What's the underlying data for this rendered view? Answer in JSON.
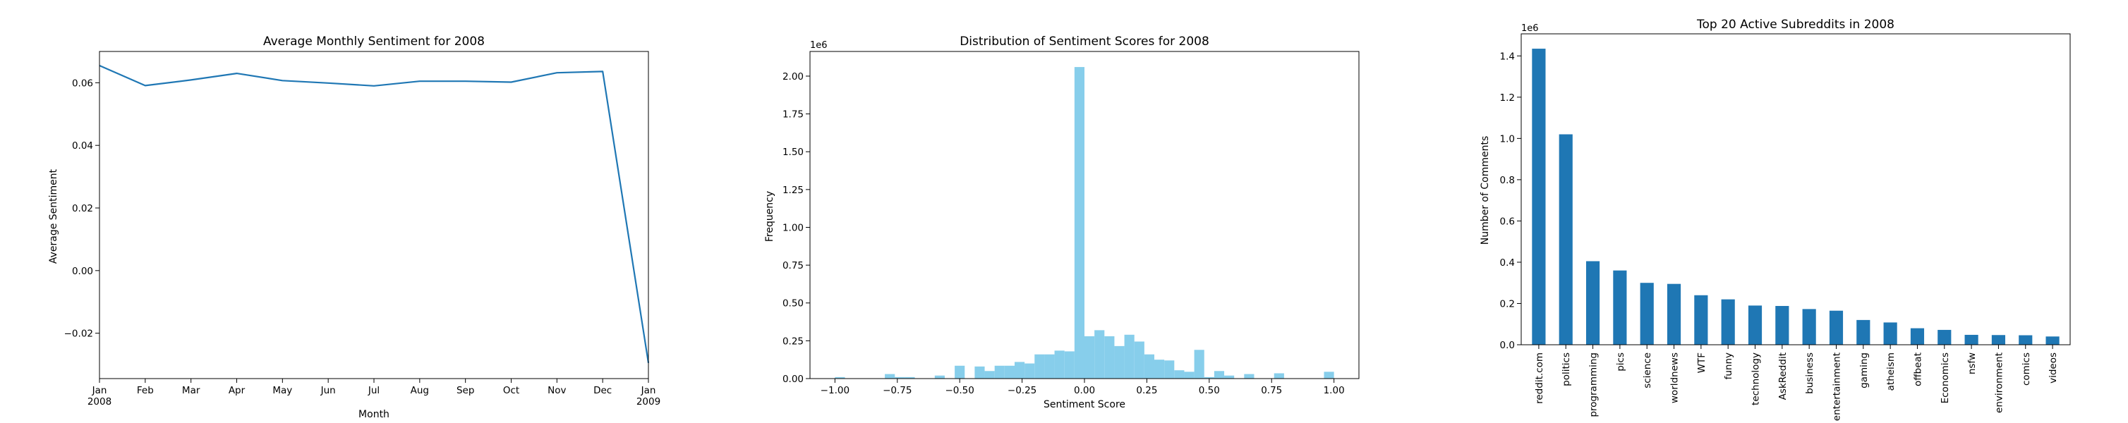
{
  "chart_data": [
    {
      "type": "line",
      "title": "Average Monthly Sentiment for 2008",
      "xlabel": "Month",
      "ylabel": "Average Sentiment",
      "x": [
        "2008-01",
        "2008-02",
        "2008-03",
        "2008-04",
        "2008-05",
        "2008-06",
        "2008-07",
        "2008-08",
        "2008-09",
        "2008-10",
        "2008-11",
        "2008-12",
        "2009-01"
      ],
      "x_tick_labels": [
        [
          "Jan",
          "2008"
        ],
        [
          "Feb"
        ],
        [
          "Mar"
        ],
        [
          "Apr"
        ],
        [
          "May"
        ],
        [
          "Jun"
        ],
        [
          "Jul"
        ],
        [
          "Aug"
        ],
        [
          "Sep"
        ],
        [
          "Oct"
        ],
        [
          "Nov"
        ],
        [
          "Dec"
        ],
        [
          "Jan",
          "2009"
        ]
      ],
      "values": [
        0.0655,
        0.0591,
        0.0609,
        0.063,
        0.0607,
        0.0599,
        0.059,
        0.0605,
        0.0605,
        0.0602,
        0.0632,
        0.0636,
        -0.0295
      ],
      "ylim": [
        -0.0345,
        0.07
      ],
      "yticks": [
        -0.02,
        0.0,
        0.02,
        0.04,
        0.06
      ],
      "ytick_labels": [
        "−0.02",
        "0.00",
        "0.02",
        "0.04",
        "0.06"
      ],
      "color": "#1f77b4",
      "grid": false,
      "legend": "none"
    },
    {
      "type": "bar",
      "subtype": "histogram",
      "title": "Distribution of Sentiment Scores for 2008",
      "xlabel": "Sentiment Score",
      "ylabel": "Frequency",
      "y_offset_label": "1e6",
      "bin_range": [
        -1.0,
        1.0
      ],
      "values": [
        0.01,
        0.001,
        0.001,
        0.001,
        0.001,
        0.03,
        0.01,
        0.01,
        0.001,
        0.001,
        0.02,
        0.001,
        0.085,
        0.001,
        0.08,
        0.05,
        0.085,
        0.085,
        0.11,
        0.1,
        0.16,
        0.16,
        0.185,
        0.18,
        2.06,
        0.28,
        0.32,
        0.28,
        0.215,
        0.29,
        0.245,
        0.16,
        0.125,
        0.12,
        0.055,
        0.045,
        0.19,
        0.01,
        0.05,
        0.02,
        0.001,
        0.03,
        0.001,
        0.001,
        0.035,
        0.001,
        0.001,
        0.001,
        0.001,
        0.045
      ],
      "xlim": [
        -1.1,
        1.1
      ],
      "xticks": [
        -1.0,
        -0.75,
        -0.5,
        -0.25,
        0.0,
        0.25,
        0.5,
        0.75,
        1.0
      ],
      "xtick_labels": [
        "−1.00",
        "−0.75",
        "−0.50",
        "−0.25",
        "0.00",
        "0.25",
        "0.50",
        "0.75",
        "1.00"
      ],
      "ylim": [
        0,
        2.163
      ],
      "yticks": [
        0,
        0.25,
        0.5,
        0.75,
        1.0,
        1.25,
        1.5,
        1.75,
        2.0
      ],
      "ytick_labels": [
        "0.00",
        "0.25",
        "0.50",
        "0.75",
        "1.00",
        "1.25",
        "1.50",
        "1.75",
        "2.00"
      ],
      "color": "#87ceeb",
      "grid": false,
      "legend": "none"
    },
    {
      "type": "bar",
      "title": "Top 20 Active Subreddits in 2008",
      "xlabel": "",
      "ylabel": "Number of Comments",
      "y_offset_label": "1e6",
      "categories": [
        "reddit.com",
        "politics",
        "programming",
        "pics",
        "science",
        "worldnews",
        "WTF",
        "funny",
        "technology",
        "AskReddit",
        "business",
        "entertainment",
        "gaming",
        "atheism",
        "offbeat",
        "Economics",
        "nsfw",
        "environment",
        "comics",
        "videos"
      ],
      "values": [
        1.435,
        1.02,
        0.405,
        0.36,
        0.3,
        0.295,
        0.24,
        0.22,
        0.19,
        0.188,
        0.173,
        0.165,
        0.12,
        0.108,
        0.08,
        0.072,
        0.048,
        0.047,
        0.046,
        0.04
      ],
      "ylim": [
        0,
        1.507
      ],
      "yticks": [
        0,
        0.2,
        0.4,
        0.6,
        0.8,
        1.0,
        1.2,
        1.4
      ],
      "ytick_labels": [
        "0.0",
        "0.2",
        "0.4",
        "0.6",
        "0.8",
        "1.0",
        "1.2",
        "1.4"
      ],
      "color": "#1f77b4",
      "grid": false,
      "legend": "none"
    }
  ]
}
